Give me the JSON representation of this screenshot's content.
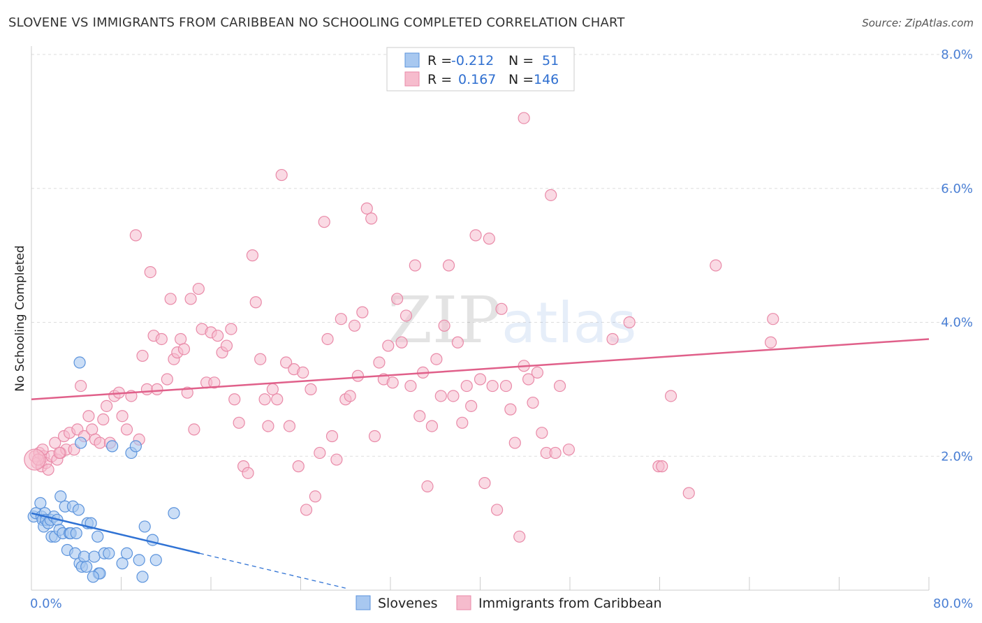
{
  "title": "SLOVENE VS IMMIGRANTS FROM CARIBBEAN NO SCHOOLING COMPLETED CORRELATION CHART",
  "source": "Source: ZipAtlas.com",
  "watermark": {
    "zip": "ZIP",
    "atlas": "atlas"
  },
  "colors": {
    "blue_fill": "#a8c8f0",
    "blue_stroke": "#5b93dc",
    "blue_line": "#2f72d4",
    "pink_fill": "#f6bccd",
    "pink_stroke": "#e98aa8",
    "pink_line": "#e0608a",
    "tick_text": "#4a7fd4",
    "grid": "#dddddd"
  },
  "legend_top": {
    "rows": [
      {
        "r_label": "R =",
        "r_value": "-0.212",
        "n_label": "N =",
        "n_value": "51"
      },
      {
        "r_label": "R =",
        "r_value": "0.167",
        "n_label": "N =",
        "n_value": "146"
      }
    ]
  },
  "chart_data": {
    "type": "scatter",
    "title": "SLOVENE VS IMMIGRANTS FROM CARIBBEAN NO SCHOOLING COMPLETED CORRELATION CHART",
    "xlabel": "",
    "ylabel": "No Schooling Completed",
    "xlim": [
      0,
      80
    ],
    "ylim": [
      0,
      8
    ],
    "x_tick_labels": [
      "0.0%",
      "80.0%"
    ],
    "y_ticks": [
      2,
      4,
      6,
      8
    ],
    "y_tick_labels": [
      "2.0%",
      "4.0%",
      "6.0%",
      "8.0%"
    ],
    "grid": true,
    "legend_position": "bottom-center",
    "series": [
      {
        "name": "Slovenes",
        "color": "#a8c8f0",
        "trend": {
          "x0": 0,
          "y0": 1.15,
          "x1": 15,
          "y1": 0.55,
          "dash_to_x": 28
        },
        "points": [
          [
            0.2,
            1.1
          ],
          [
            0.4,
            1.15
          ],
          [
            0.8,
            1.3
          ],
          [
            0.9,
            1.1
          ],
          [
            1,
            1.05
          ],
          [
            1.1,
            0.95
          ],
          [
            1.2,
            1.15
          ],
          [
            1.3,
            1.05
          ],
          [
            1.5,
            1.0
          ],
          [
            1.7,
            1.05
          ],
          [
            1.8,
            0.8
          ],
          [
            2,
            1.1
          ],
          [
            2.1,
            0.8
          ],
          [
            2.3,
            1.05
          ],
          [
            2.5,
            0.9
          ],
          [
            2.6,
            1.4
          ],
          [
            2.8,
            0.85
          ],
          [
            3,
            1.25
          ],
          [
            3.2,
            0.6
          ],
          [
            3.4,
            0.85
          ],
          [
            3.5,
            0.85
          ],
          [
            3.7,
            1.25
          ],
          [
            3.9,
            0.55
          ],
          [
            4,
            0.85
          ],
          [
            4.2,
            1.2
          ],
          [
            4.3,
            0.4
          ],
          [
            4.5,
            0.35
          ],
          [
            4.7,
            0.5
          ],
          [
            4.9,
            0.35
          ],
          [
            5,
            1.0
          ],
          [
            5.3,
            1.0
          ],
          [
            5.6,
            0.5
          ],
          [
            5.9,
            0.8
          ],
          [
            6,
            0.25
          ],
          [
            6.1,
            0.25
          ],
          [
            6.5,
            0.55
          ],
          [
            6.9,
            0.55
          ],
          [
            7.2,
            2.15
          ],
          [
            8.1,
            0.4
          ],
          [
            8.5,
            0.55
          ],
          [
            8.9,
            2.05
          ],
          [
            9.3,
            2.15
          ],
          [
            9.6,
            0.45
          ],
          [
            9.9,
            0.2
          ],
          [
            10.1,
            0.95
          ],
          [
            10.8,
            0.75
          ],
          [
            11.1,
            0.45
          ],
          [
            12.7,
            1.15
          ],
          [
            4.4,
            2.2
          ],
          [
            4.3,
            3.4
          ],
          [
            5.5,
            0.2
          ]
        ]
      },
      {
        "name": "Immigrants from Caribbean",
        "color": "#f6bccd",
        "trend": {
          "x0": 0,
          "y0": 2.85,
          "x1": 80,
          "y1": 3.75
        },
        "points": [
          [
            0.3,
            2.0
          ],
          [
            0.5,
            1.9
          ],
          [
            0.7,
            2.05
          ],
          [
            0.9,
            1.85
          ],
          [
            1.1,
            2.0
          ],
          [
            1.3,
            1.9
          ],
          [
            1.5,
            1.8
          ],
          [
            1.8,
            2.0
          ],
          [
            2.1,
            2.2
          ],
          [
            2.3,
            1.95
          ],
          [
            2.6,
            2.05
          ],
          [
            2.9,
            2.3
          ],
          [
            3.1,
            2.1
          ],
          [
            3.4,
            2.35
          ],
          [
            3.8,
            2.1
          ],
          [
            4.1,
            2.4
          ],
          [
            4.4,
            3.05
          ],
          [
            4.7,
            2.3
          ],
          [
            5.1,
            2.6
          ],
          [
            5.4,
            2.4
          ],
          [
            5.7,
            2.25
          ],
          [
            6.1,
            2.2
          ],
          [
            6.4,
            2.55
          ],
          [
            6.7,
            2.75
          ],
          [
            7,
            2.2
          ],
          [
            7.4,
            2.9
          ],
          [
            7.8,
            2.95
          ],
          [
            8.1,
            2.6
          ],
          [
            8.5,
            2.4
          ],
          [
            8.9,
            2.9
          ],
          [
            9.3,
            5.3
          ],
          [
            9.6,
            2.25
          ],
          [
            9.9,
            3.5
          ],
          [
            10.3,
            3.0
          ],
          [
            10.6,
            4.75
          ],
          [
            10.9,
            3.8
          ],
          [
            11.2,
            3.0
          ],
          [
            11.6,
            3.75
          ],
          [
            12.1,
            3.15
          ],
          [
            12.4,
            4.35
          ],
          [
            12.7,
            3.45
          ],
          [
            13,
            3.55
          ],
          [
            13.3,
            3.75
          ],
          [
            13.6,
            3.6
          ],
          [
            13.9,
            2.95
          ],
          [
            14.2,
            4.35
          ],
          [
            14.5,
            2.4
          ],
          [
            14.9,
            4.5
          ],
          [
            15.2,
            3.9
          ],
          [
            15.6,
            3.1
          ],
          [
            16,
            3.85
          ],
          [
            16.3,
            3.1
          ],
          [
            16.6,
            3.8
          ],
          [
            17,
            3.55
          ],
          [
            17.4,
            3.65
          ],
          [
            17.8,
            3.9
          ],
          [
            18.1,
            2.85
          ],
          [
            18.5,
            2.5
          ],
          [
            18.9,
            1.85
          ],
          [
            19.3,
            1.75
          ],
          [
            19.7,
            5.0
          ],
          [
            20,
            4.3
          ],
          [
            20.4,
            3.45
          ],
          [
            20.8,
            2.85
          ],
          [
            21.1,
            2.45
          ],
          [
            21.5,
            3.0
          ],
          [
            21.9,
            2.85
          ],
          [
            22.3,
            6.2
          ],
          [
            22.7,
            3.4
          ],
          [
            23,
            2.45
          ],
          [
            23.4,
            3.3
          ],
          [
            23.8,
            1.85
          ],
          [
            24.2,
            3.25
          ],
          [
            24.5,
            1.2
          ],
          [
            24.9,
            3.0
          ],
          [
            25.3,
            1.4
          ],
          [
            25.7,
            2.05
          ],
          [
            26.1,
            5.5
          ],
          [
            26.4,
            3.75
          ],
          [
            26.8,
            2.3
          ],
          [
            27.2,
            1.95
          ],
          [
            27.6,
            4.05
          ],
          [
            28,
            2.85
          ],
          [
            28.4,
            2.9
          ],
          [
            28.8,
            3.95
          ],
          [
            29.1,
            3.2
          ],
          [
            29.5,
            4.15
          ],
          [
            29.9,
            5.7
          ],
          [
            30.3,
            5.55
          ],
          [
            30.6,
            2.3
          ],
          [
            31,
            3.4
          ],
          [
            31.4,
            3.15
          ],
          [
            31.8,
            3.65
          ],
          [
            32.2,
            3.1
          ],
          [
            32.6,
            4.35
          ],
          [
            33,
            3.7
          ],
          [
            33.4,
            4.1
          ],
          [
            33.8,
            3.05
          ],
          [
            34.2,
            4.85
          ],
          [
            34.6,
            2.6
          ],
          [
            34.9,
            3.25
          ],
          [
            35.3,
            1.55
          ],
          [
            35.7,
            2.45
          ],
          [
            36.1,
            3.45
          ],
          [
            36.5,
            2.9
          ],
          [
            36.8,
            3.95
          ],
          [
            37.2,
            4.85
          ],
          [
            37.6,
            2.9
          ],
          [
            38,
            3.7
          ],
          [
            38.4,
            2.5
          ],
          [
            38.8,
            3.05
          ],
          [
            39.2,
            2.75
          ],
          [
            39.6,
            5.3
          ],
          [
            40,
            3.15
          ],
          [
            40.4,
            1.6
          ],
          [
            40.8,
            5.25
          ],
          [
            41.1,
            3.05
          ],
          [
            41.5,
            1.2
          ],
          [
            41.9,
            4.2
          ],
          [
            42.3,
            3.05
          ],
          [
            42.7,
            2.7
          ],
          [
            43.1,
            2.2
          ],
          [
            43.5,
            0.8
          ],
          [
            43.9,
            3.35
          ],
          [
            44.3,
            3.15
          ],
          [
            44.7,
            2.8
          ],
          [
            45.1,
            3.25
          ],
          [
            45.5,
            2.35
          ],
          [
            45.9,
            2.05
          ],
          [
            46.3,
            5.9
          ],
          [
            46.7,
            2.05
          ],
          [
            47.1,
            3.05
          ],
          [
            47.9,
            2.1
          ],
          [
            43.9,
            7.05
          ],
          [
            51.8,
            3.75
          ],
          [
            53.3,
            4.0
          ],
          [
            55.9,
            1.85
          ],
          [
            56.2,
            1.85
          ],
          [
            57,
            2.9
          ],
          [
            58.6,
            1.45
          ],
          [
            61,
            4.85
          ],
          [
            65.9,
            3.7
          ],
          [
            66.1,
            4.05
          ],
          [
            0.6,
            1.95
          ],
          [
            1.0,
            2.1
          ],
          [
            2.5,
            2.05
          ]
        ]
      }
    ]
  },
  "legend_bottom": {
    "items": [
      "Slovenes",
      "Immigrants from Caribbean"
    ]
  }
}
